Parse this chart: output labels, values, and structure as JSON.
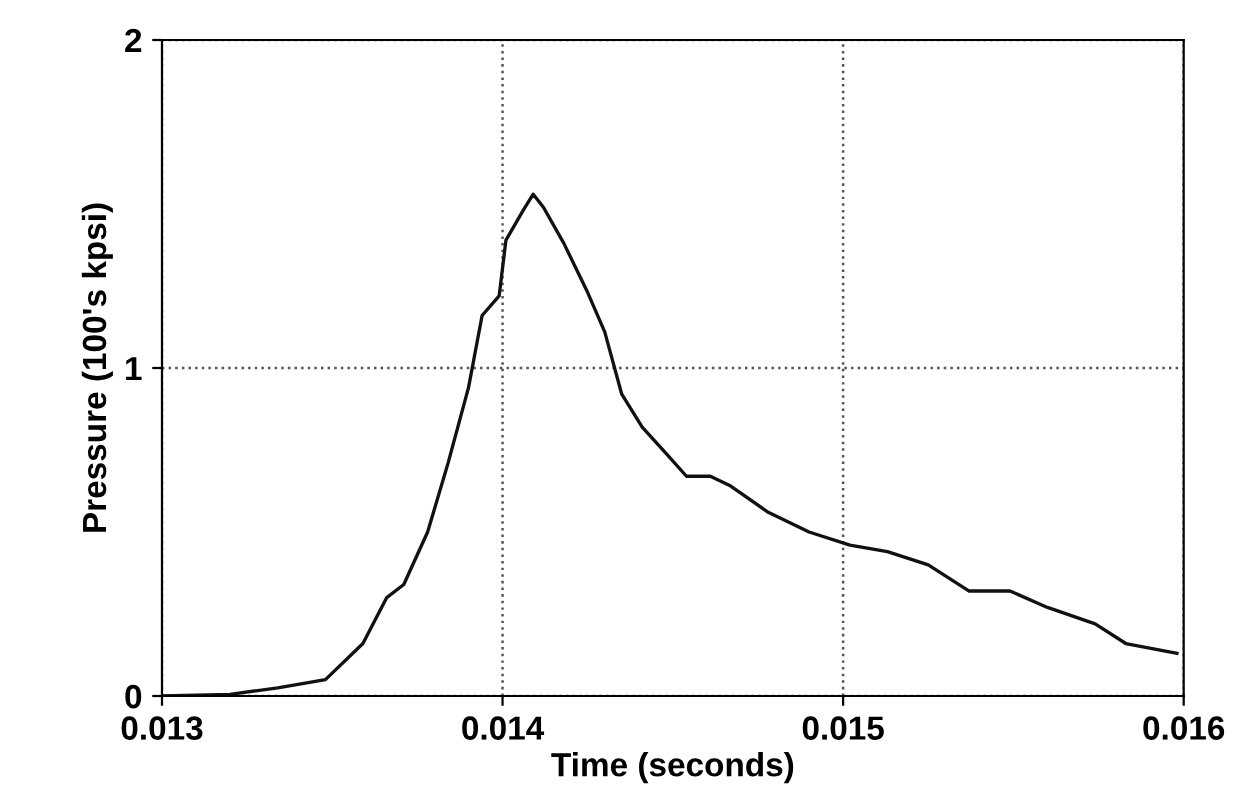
{
  "chart_data": {
    "type": "line",
    "xlabel": "Time (seconds)",
    "ylabel": "Pressure (100's kpsi)",
    "x": [
      0.013,
      0.0132,
      0.01334,
      0.01348,
      0.01359,
      0.01366,
      0.01371,
      0.01378,
      0.01384,
      0.0139,
      0.01394,
      0.01399,
      0.01401,
      0.01406,
      0.01409,
      0.01412,
      0.01418,
      0.01425,
      0.0143,
      0.01435,
      0.01441,
      0.01448,
      0.01454,
      0.01461,
      0.01467,
      0.01478,
      0.0149,
      0.01502,
      0.01513,
      0.01525,
      0.01537,
      0.01549,
      0.0156,
      0.01574,
      0.01583,
      0.01598
    ],
    "series": [
      {
        "color": "#111111",
        "values": [
          0,
          0.005,
          0.025,
          0.05,
          0.16,
          0.3,
          0.34,
          0.5,
          0.71,
          0.94,
          1.16,
          1.22,
          1.39,
          1.48,
          1.53,
          1.49,
          1.38,
          1.23,
          1.11,
          0.92,
          0.82,
          0.74,
          0.67,
          0.67,
          0.64,
          0.56,
          0.5,
          0.46,
          0.44,
          0.4,
          0.32,
          0.32,
          0.27,
          0.22,
          0.16,
          0.13
        ]
      }
    ],
    "xlim": [
      0.013,
      0.016
    ],
    "ylim": [
      0,
      2
    ],
    "xticks": [
      0.013,
      0.014,
      0.015,
      0.016
    ],
    "yticks": [
      0,
      1,
      2
    ],
    "grid": true,
    "marker": "none",
    "line_style": "solid"
  }
}
